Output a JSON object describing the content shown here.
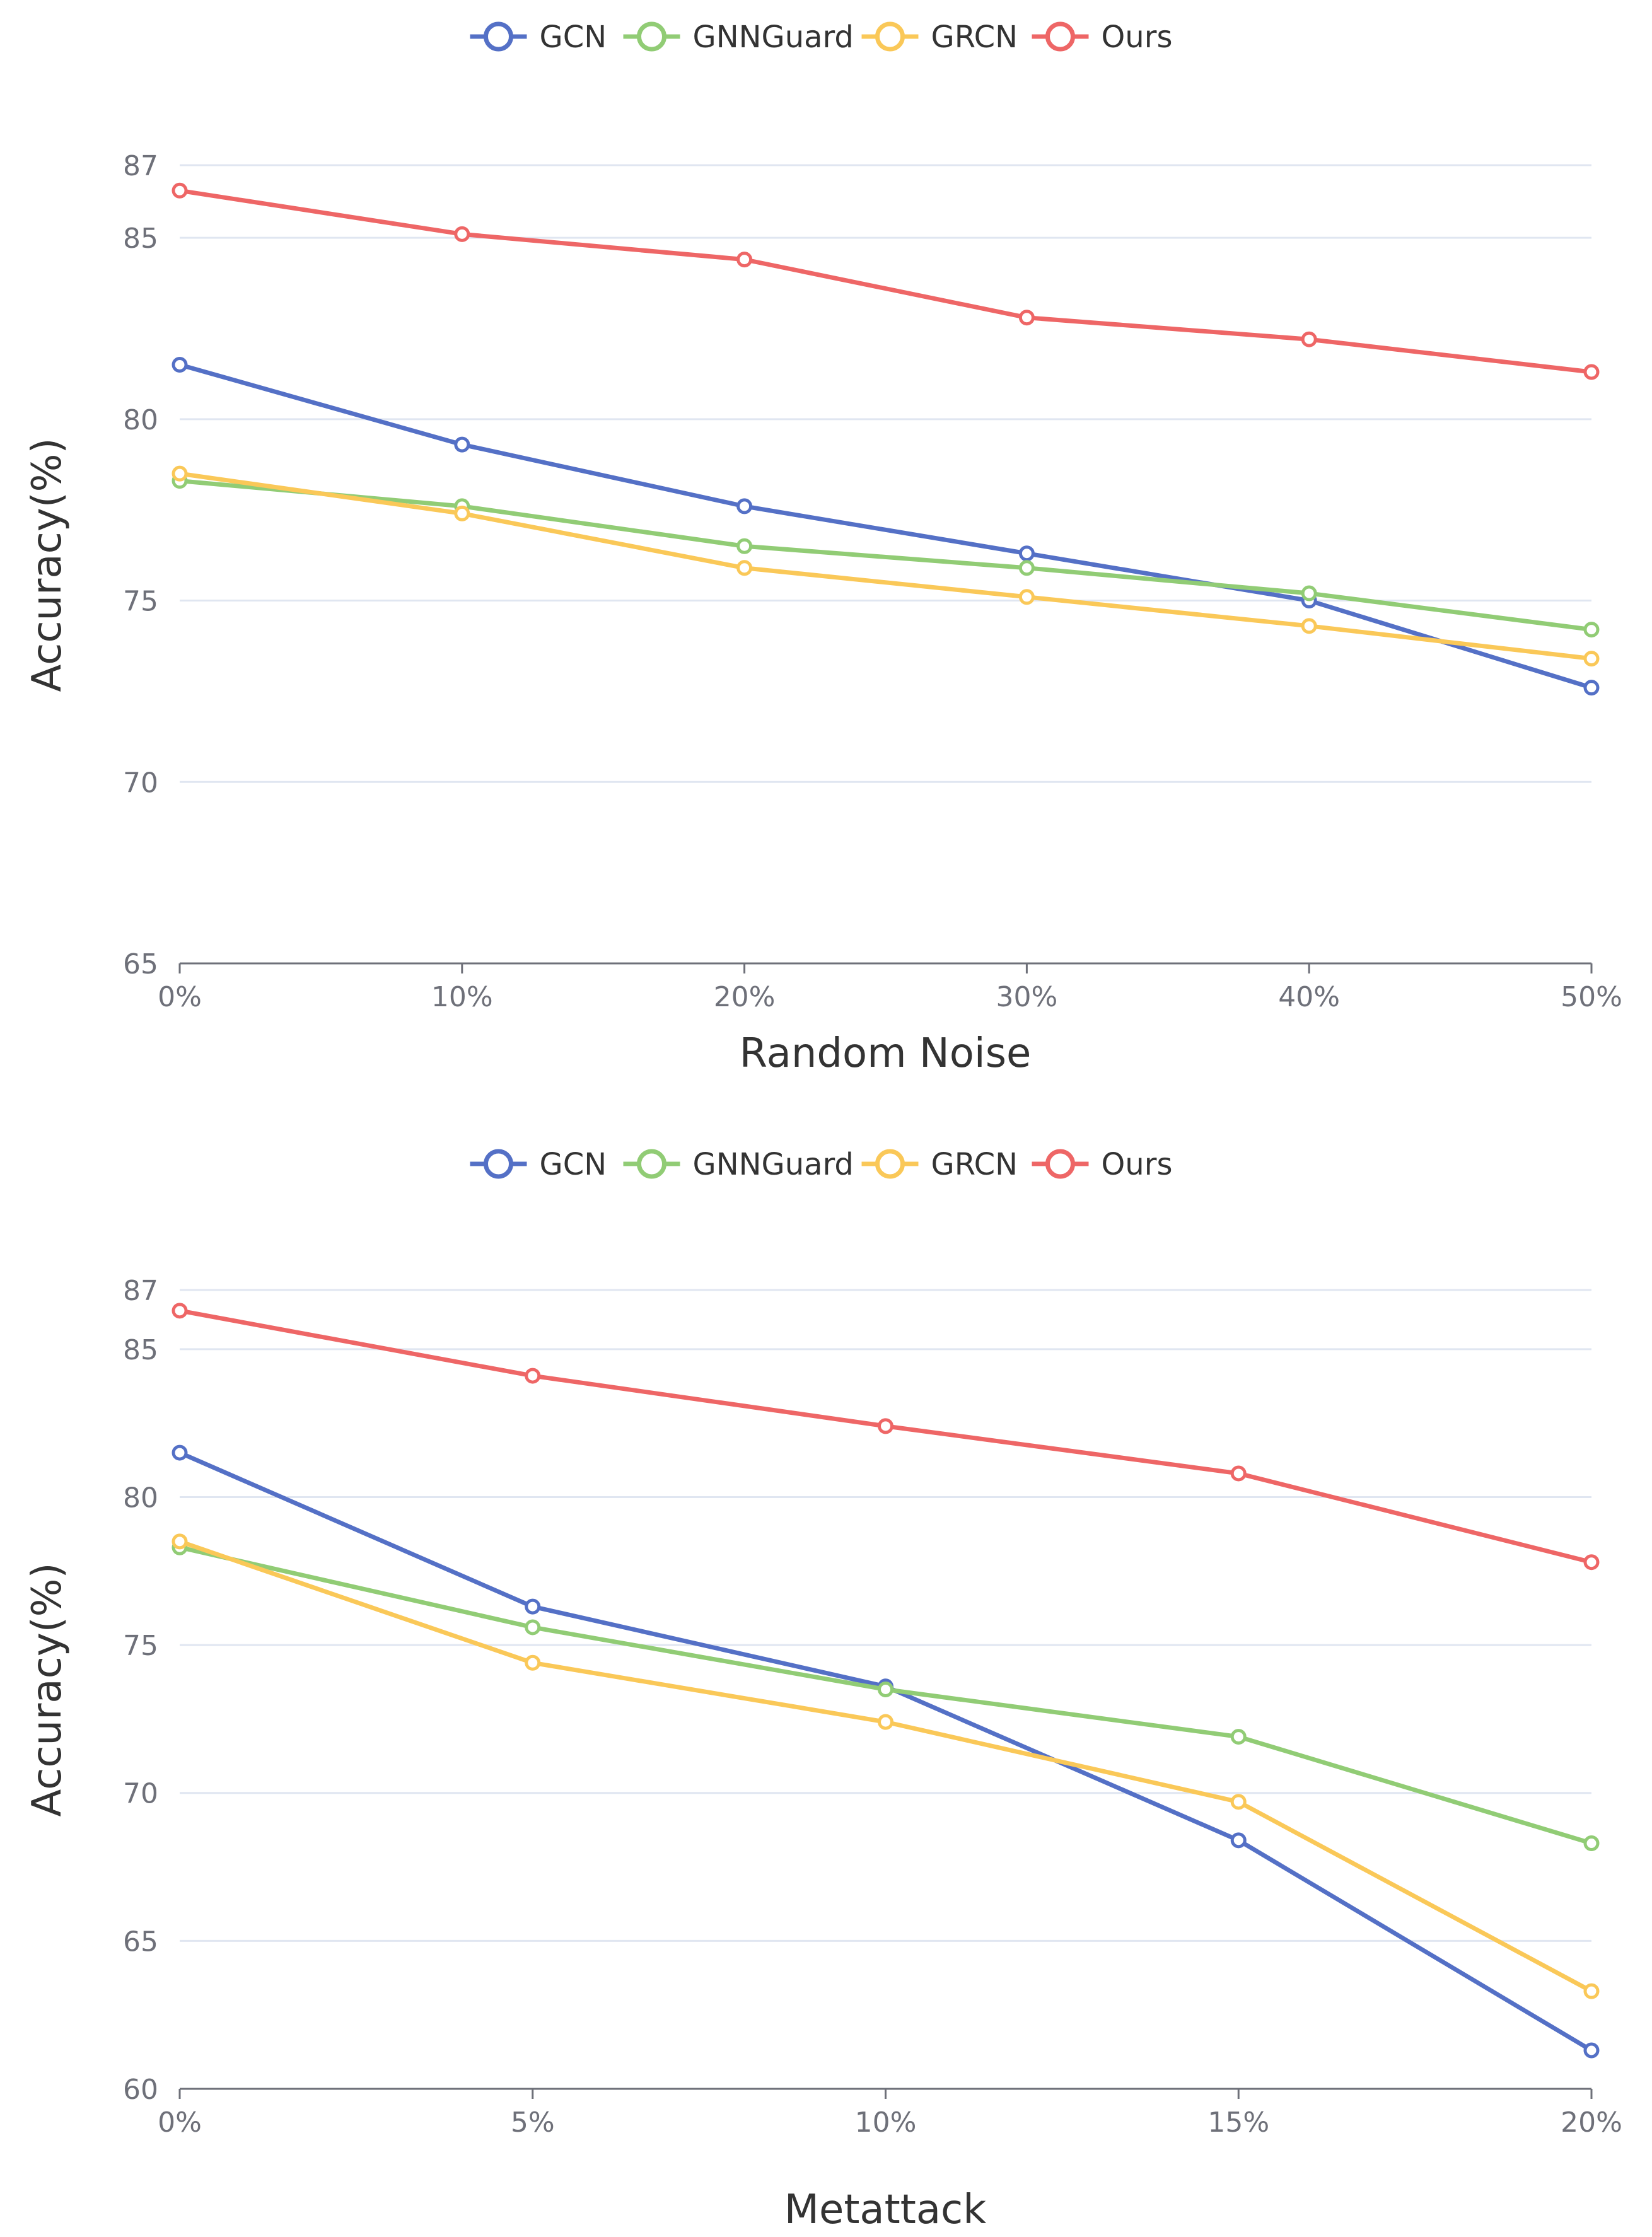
{
  "chart_data": [
    {
      "type": "line",
      "title": "",
      "xlabel": "Random Noise",
      "ylabel": "Accuracy(%)",
      "categories": [
        "0%",
        "10%",
        "20%",
        "30%",
        "40%",
        "50%"
      ],
      "yticks": [
        65,
        70,
        75,
        80,
        85,
        87
      ],
      "ylim": [
        65,
        87
      ],
      "legend": "top-center",
      "grid": true,
      "series": [
        {
          "name": "GCN",
          "color": "#5470c6",
          "values": [
            81.5,
            79.3,
            77.6,
            76.3,
            75.0,
            72.6
          ]
        },
        {
          "name": "GNNGuard",
          "color": "#91cc75",
          "values": [
            78.3,
            77.6,
            76.5,
            75.9,
            75.2,
            74.2
          ]
        },
        {
          "name": "GRCN",
          "color": "#fac858",
          "values": [
            78.5,
            77.4,
            75.9,
            75.1,
            74.3,
            73.4
          ]
        },
        {
          "name": "Ours",
          "color": "#ee6666",
          "values": [
            86.3,
            85.1,
            84.4,
            82.8,
            82.2,
            81.3
          ]
        }
      ]
    },
    {
      "type": "line",
      "title": "",
      "xlabel": "Metattack",
      "ylabel": "Accuracy(%)",
      "categories": [
        "0%",
        "5%",
        "10%",
        "15%",
        "20%"
      ],
      "yticks": [
        60,
        65,
        70,
        75,
        80,
        85,
        87
      ],
      "ylim": [
        60,
        87
      ],
      "legend": "top-center",
      "grid": true,
      "series": [
        {
          "name": "GCN",
          "color": "#5470c6",
          "values": [
            81.5,
            76.3,
            73.6,
            68.4,
            61.3
          ]
        },
        {
          "name": "GNNGuard",
          "color": "#91cc75",
          "values": [
            78.3,
            75.6,
            73.5,
            71.9,
            68.3
          ]
        },
        {
          "name": "GRCN",
          "color": "#fac858",
          "values": [
            78.5,
            74.4,
            72.4,
            69.7,
            63.3
          ]
        },
        {
          "name": "Ours",
          "color": "#ee6666",
          "values": [
            86.3,
            84.1,
            82.4,
            80.8,
            77.8
          ]
        }
      ]
    }
  ]
}
